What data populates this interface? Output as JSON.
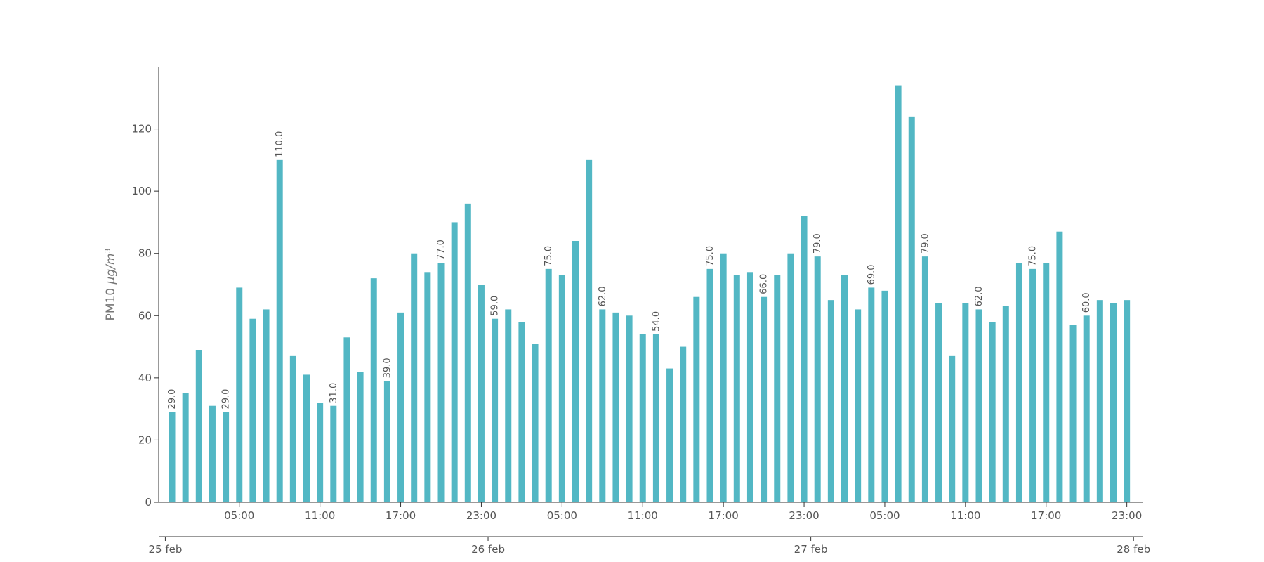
{
  "chart_data": {
    "type": "bar",
    "ylabel_prefix": "PM10 ",
    "ylabel_unit": "μg/m",
    "ylabel_sup": "3",
    "ylim": [
      0,
      140
    ],
    "yticks": [
      0,
      20,
      40,
      60,
      80,
      100,
      120
    ],
    "grid": false,
    "color": "#52b7c4",
    "hour_tick_labels": [
      "05:00",
      "11:00",
      "17:00",
      "23:00",
      "05:00",
      "11:00",
      "17:00",
      "23:00",
      "05:00",
      "11:00",
      "17:00",
      "23:00"
    ],
    "date_tick_labels": [
      "25 feb",
      "26 feb",
      "27 feb",
      "28 feb"
    ],
    "values": [
      29,
      35,
      49,
      31,
      29,
      69,
      59,
      62,
      110,
      47,
      41,
      32,
      31,
      53,
      42,
      72,
      39,
      61,
      80,
      74,
      77,
      90,
      96,
      70,
      59,
      62,
      58,
      51,
      75,
      73,
      84,
      110,
      62,
      61,
      60,
      54,
      54,
      43,
      50,
      66,
      75,
      80,
      73,
      74,
      66,
      73,
      80,
      92,
      79,
      65,
      73,
      62,
      69,
      68,
      134,
      124,
      79,
      64,
      47,
      64,
      62,
      58,
      63,
      77,
      75,
      77,
      87,
      57,
      60,
      65,
      64,
      65
    ],
    "labeled_indices": [
      0,
      4,
      8,
      12,
      16,
      20,
      24,
      28,
      32,
      36,
      40,
      44,
      48,
      52,
      56,
      60,
      64,
      68
    ]
  }
}
